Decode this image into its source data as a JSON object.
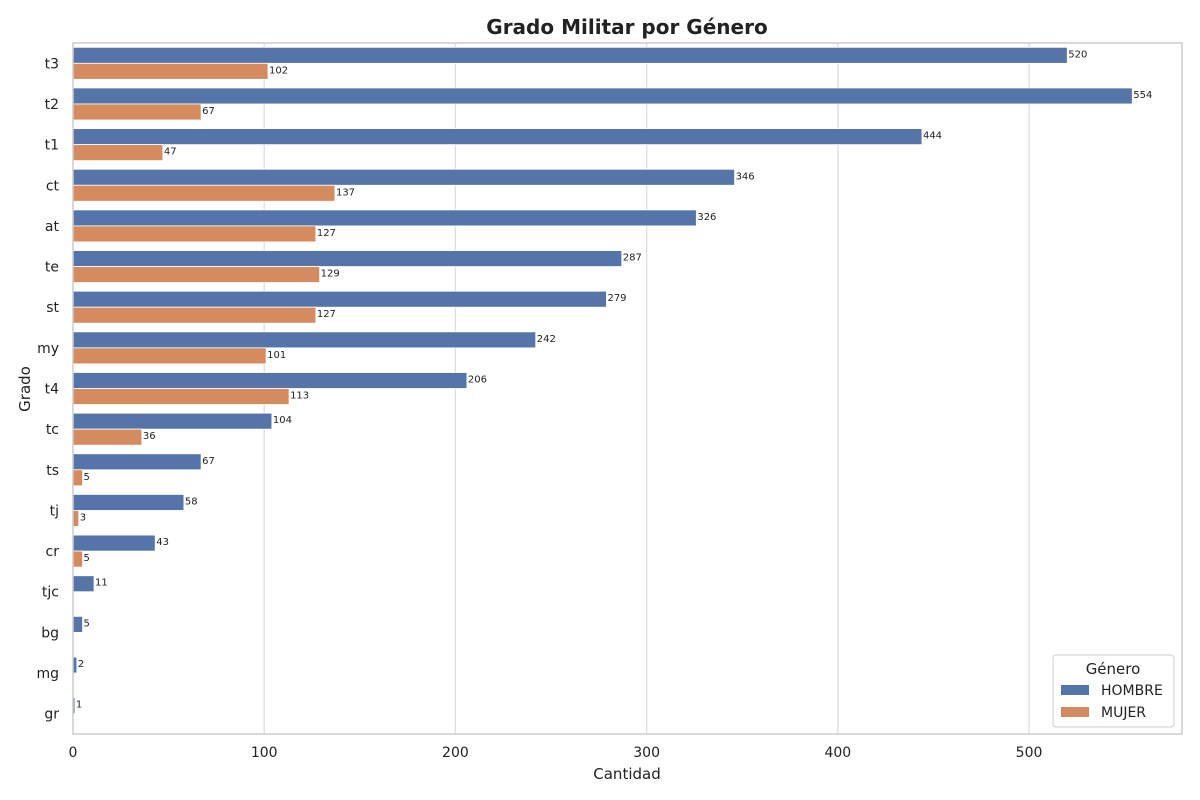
{
  "chart_data": {
    "type": "bar",
    "orientation": "horizontal",
    "title": "Grado Militar por Género",
    "xlabel": "Cantidad",
    "ylabel": "Grado",
    "xlim": [
      0,
      580
    ],
    "xticks": [
      0,
      100,
      200,
      300,
      400,
      500
    ],
    "grid": "vertical",
    "categories": [
      "t3",
      "t2",
      "t1",
      "ct",
      "at",
      "te",
      "st",
      "my",
      "t4",
      "tc",
      "ts",
      "tj",
      "cr",
      "tjc",
      "bg",
      "mg",
      "gr"
    ],
    "series": [
      {
        "name": "HOMBRE",
        "color": "#5575a8",
        "values": [
          520,
          554,
          444,
          346,
          326,
          287,
          279,
          242,
          206,
          104,
          67,
          58,
          43,
          11,
          5,
          2,
          1
        ]
      },
      {
        "name": "MUJER",
        "color": "#d58b60",
        "values": [
          102,
          67,
          47,
          137,
          127,
          129,
          127,
          101,
          113,
          36,
          5,
          3,
          5,
          null,
          null,
          null,
          null
        ]
      }
    ],
    "legend": {
      "title": "Género",
      "position": "bottom-right"
    }
  }
}
